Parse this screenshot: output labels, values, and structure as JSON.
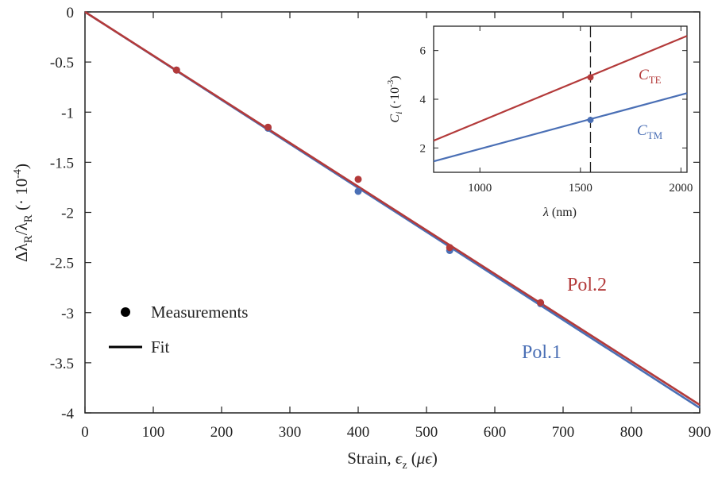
{
  "chart_data": [
    {
      "type": "scatter",
      "role": "main",
      "xlabel": "Strain, ϵz (μϵ)",
      "xlabel_parts": {
        "text": "Strain, ",
        "symbol": "ϵ",
        "sub": "z",
        "unit_open": " (",
        "unit_mu": "μ",
        "unit_eps": "ϵ",
        "unit_close": ")"
      },
      "ylabel": "ΔλR/λR (· 10⁻⁴)",
      "ylabel_parts": {
        "delta": "Δ",
        "lambda": "λ",
        "sub": "R",
        "slash": "/",
        "unit": " (· 10",
        "exp": "-4",
        "close": ")"
      },
      "xlim": [
        0,
        900
      ],
      "ylim": [
        -4,
        0
      ],
      "xticks": [
        "0",
        "100",
        "200",
        "300",
        "400",
        "500",
        "600",
        "700",
        "800",
        "900"
      ],
      "yticks": [
        "0",
        "-0.5",
        "-1",
        "-1.5",
        "-2",
        "-2.5",
        "-3",
        "-3.5",
        "-4"
      ],
      "grid": false,
      "series": [
        {
          "name": "Pol.1",
          "color": "#4a6fb5",
          "points": [
            [
              134,
              -0.58
            ],
            [
              268,
              -1.16
            ],
            [
              400,
              -1.79
            ],
            [
              534,
              -2.38
            ],
            [
              667,
              -2.91
            ]
          ],
          "fit": [
            [
              0,
              0.0
            ],
            [
              900,
              -3.95
            ]
          ]
        },
        {
          "name": "Pol.2",
          "color": "#b33a3a",
          "points": [
            [
              134,
              -0.58
            ],
            [
              268,
              -1.15
            ],
            [
              400,
              -1.67
            ],
            [
              534,
              -2.35
            ],
            [
              667,
              -2.9
            ]
          ],
          "fit": [
            [
              0,
              0.0
            ],
            [
              900,
              -3.92
            ]
          ]
        }
      ],
      "legend": {
        "placement": "bottom-left",
        "entries": [
          {
            "label": "Measurements",
            "marker": "dot"
          },
          {
            "label": "Fit",
            "marker": "line"
          }
        ]
      }
    },
    {
      "type": "line",
      "role": "inset",
      "xlabel": "λ (nm)",
      "xlabel_parts": {
        "symbol": "λ",
        "unit": " (nm)"
      },
      "ylabel": "Ci (·10⁻³)",
      "ylabel_parts": {
        "symbol": "C",
        "sub": "i",
        "unit": " (·10",
        "exp": "-3",
        "close": ")"
      },
      "xlim": [
        770,
        2030
      ],
      "ylim": [
        1,
        7
      ],
      "xticks": [
        "1000",
        "1500",
        "2000"
      ],
      "yticks": [
        "2",
        "4",
        "6"
      ],
      "marker_x": 1550,
      "series": [
        {
          "name": "CTE",
          "label_main": "C",
          "label_sub": "TE",
          "color": "#b33a3a",
          "line": [
            [
              770,
              2.3
            ],
            [
              2030,
              6.6
            ]
          ],
          "point": [
            1550,
            4.9
          ]
        },
        {
          "name": "CTM",
          "label_main": "C",
          "label_sub": "TM",
          "color": "#4a6fb5",
          "line": [
            [
              770,
              1.45
            ],
            [
              2030,
              4.25
            ]
          ],
          "point": [
            1550,
            3.15
          ]
        }
      ]
    }
  ]
}
